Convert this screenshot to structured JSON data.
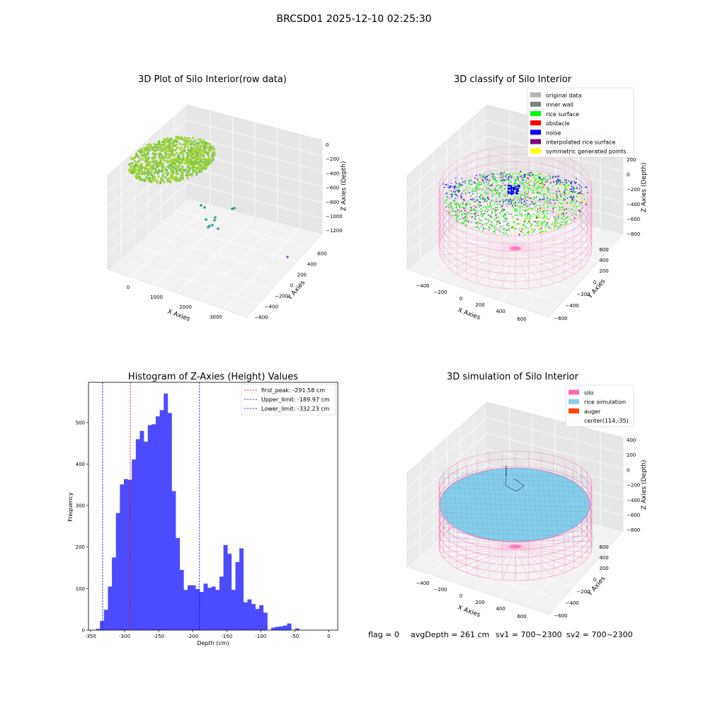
{
  "figure": {
    "suptitle": "BRCSD01 2025-12-10 02:25:30",
    "status_line": {
      "flag": "flag = 0",
      "avg_depth": "avgDepth = 261 cm",
      "sv1": "sv1 = 700~2300",
      "sv2": "sv2 = 700~2300"
    }
  },
  "chart_data": [
    {
      "id": "raw",
      "type": "scatter",
      "title": "3D Plot of Silo Interior(row data)",
      "xlabel": "X Axies",
      "ylabel": "Y Axies",
      "zlabel": "Z Axies (Depth)",
      "x_ticks": [
        "0",
        "1000",
        "2000",
        "3000"
      ],
      "y_ticks": [
        "600",
        "400",
        "200",
        "0",
        "−200",
        "−400",
        "−600"
      ],
      "z_ticks": [
        "0",
        "−200",
        "−400",
        "−600",
        "−800",
        "−1000",
        "−1200"
      ],
      "colors": {
        "surface": "#a6d43a",
        "surface_dark": "#7ac64a",
        "outliers": "#2a9d8f",
        "far_point": "#9b4dca"
      }
    },
    {
      "id": "classify",
      "type": "scatter",
      "title": "3D classify of Silo Interior",
      "xlabel": "X Axies",
      "ylabel": "Y Axies",
      "zlabel": "Z Axies (Depth)",
      "x_ticks": [
        "−400",
        "−200",
        "0",
        "200",
        "400",
        "600"
      ],
      "y_ticks": [
        "600",
        "400",
        "200",
        "0",
        "−200",
        "−400",
        "−600"
      ],
      "z_ticks": [
        "200",
        "0",
        "−200",
        "−400",
        "−600",
        "−800"
      ],
      "legend_position": "top-right",
      "legend": [
        {
          "label": "original data",
          "color": "#b5b5b5"
        },
        {
          "label": "inner wall",
          "color": "#808080"
        },
        {
          "label": "rice surface",
          "color": "#00ff00"
        },
        {
          "label": "obstacle",
          "color": "#ff0000"
        },
        {
          "label": "noise",
          "color": "#0000ff"
        },
        {
          "label": "interpolated rice surface",
          "color": "#800080"
        },
        {
          "label": "symmetric generated points",
          "color": "#ffff00"
        }
      ]
    },
    {
      "id": "hist",
      "type": "bar",
      "title": "Histogram of Z-Axies (Height) Values",
      "xlabel": "Depth (cm)",
      "ylabel": "Frequency",
      "xlim": [
        -353,
        13
      ],
      "ylim": [
        0,
        597
      ],
      "bin_start": -342,
      "bin_width": 5.85,
      "values": [
        3,
        22,
        49,
        105,
        175,
        282,
        351,
        364,
        362,
        411,
        460,
        480,
        454,
        494,
        496,
        515,
        530,
        570,
        523,
        335,
        222,
        145,
        97,
        108,
        108,
        99,
        92,
        112,
        102,
        105,
        97,
        129,
        205,
        184,
        97,
        164,
        197,
        67,
        74,
        63,
        51,
        60,
        42,
        0,
        6,
        8,
        9,
        11,
        16,
        0,
        4
      ],
      "x_ticks": [
        -350,
        -300,
        -250,
        -200,
        -150,
        -100,
        -50,
        0
      ],
      "y_ticks": [
        0,
        100,
        200,
        300,
        400,
        500
      ],
      "bar_color": "#4b4bff",
      "vlines": [
        {
          "label": "first_peak: -291.58 cm",
          "x": -291.58,
          "color": "#ff0000"
        },
        {
          "label": "Upper_limit: -189.97 cm",
          "x": -189.97,
          "color": "#0000ff"
        },
        {
          "label": "Lower_limit: -332.23 cm",
          "x": -332.23,
          "color": "#0000ff"
        }
      ],
      "legend_position": "top-right"
    },
    {
      "id": "sim",
      "type": "scatter",
      "title": "3D simulation of Silo Interior",
      "xlabel": "X Axies",
      "ylabel": "Y Axies",
      "zlabel": "Z Axies (Depth)",
      "x_ticks": [
        "−400",
        "−200",
        "0",
        "200",
        "400",
        "600"
      ],
      "y_ticks": [
        "600",
        "400",
        "200",
        "0",
        "−200",
        "−400",
        "−600"
      ],
      "z_ticks": [
        "400",
        "200",
        "0",
        "−200",
        "−400",
        "−600",
        "−800"
      ],
      "legend_position": "top-right",
      "legend": [
        {
          "label": "silo",
          "color": "#ff69b4"
        },
        {
          "label": "rice simulation",
          "color": "#87ceeb"
        },
        {
          "label": "auger",
          "color": "#ff4500"
        },
        {
          "label": "center(114,-35)",
          "color": ""
        }
      ]
    }
  ]
}
